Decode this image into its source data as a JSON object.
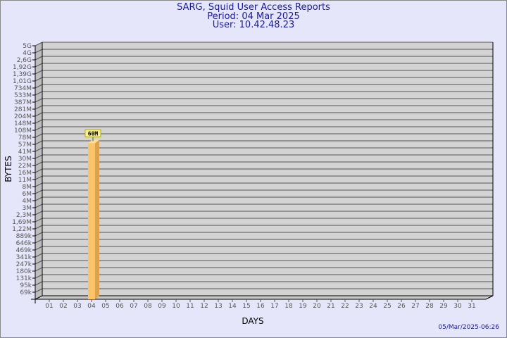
{
  "header": {
    "title": "SARG, Squid User Access Reports",
    "period": "Period: 04 Mar 2025",
    "user": "User: 10.42.48.23"
  },
  "footer": {
    "generated": "05/Mar/2025-06:26"
  },
  "chart_data": {
    "type": "bar",
    "xlabel": "DAYS",
    "ylabel": "BYTES",
    "y_scale": "log",
    "grid": true,
    "categories": [
      "01",
      "02",
      "03",
      "04",
      "05",
      "06",
      "07",
      "08",
      "09",
      "10",
      "11",
      "12",
      "13",
      "14",
      "15",
      "16",
      "17",
      "18",
      "19",
      "20",
      "21",
      "22",
      "23",
      "24",
      "25",
      "26",
      "27",
      "28",
      "29",
      "30",
      "31"
    ],
    "y_ticks": [
      "5G",
      "4G",
      "2,6G",
      "1,92G",
      "1,39G",
      "1,01G",
      "734M",
      "533M",
      "387M",
      "281M",
      "204M",
      "148M",
      "108M",
      "78M",
      "57M",
      "41M",
      "30M",
      "22M",
      "16M",
      "11M",
      "8M",
      "6M",
      "4M",
      "3M",
      "2,3M",
      "1,69M",
      "1,22M",
      "889k",
      "646k",
      "469k",
      "341k",
      "247k",
      "180k",
      "131k",
      "95k",
      "69k"
    ],
    "bars": [
      {
        "day": "04",
        "value_bytes": 60000000,
        "label": "60M"
      }
    ],
    "colors": {
      "bar": "#fcc468",
      "bar_side": "#dca24e",
      "bar_top": "#fde08e",
      "plot": "#d3d3d3",
      "label_bg": "#f5f0a0"
    }
  }
}
